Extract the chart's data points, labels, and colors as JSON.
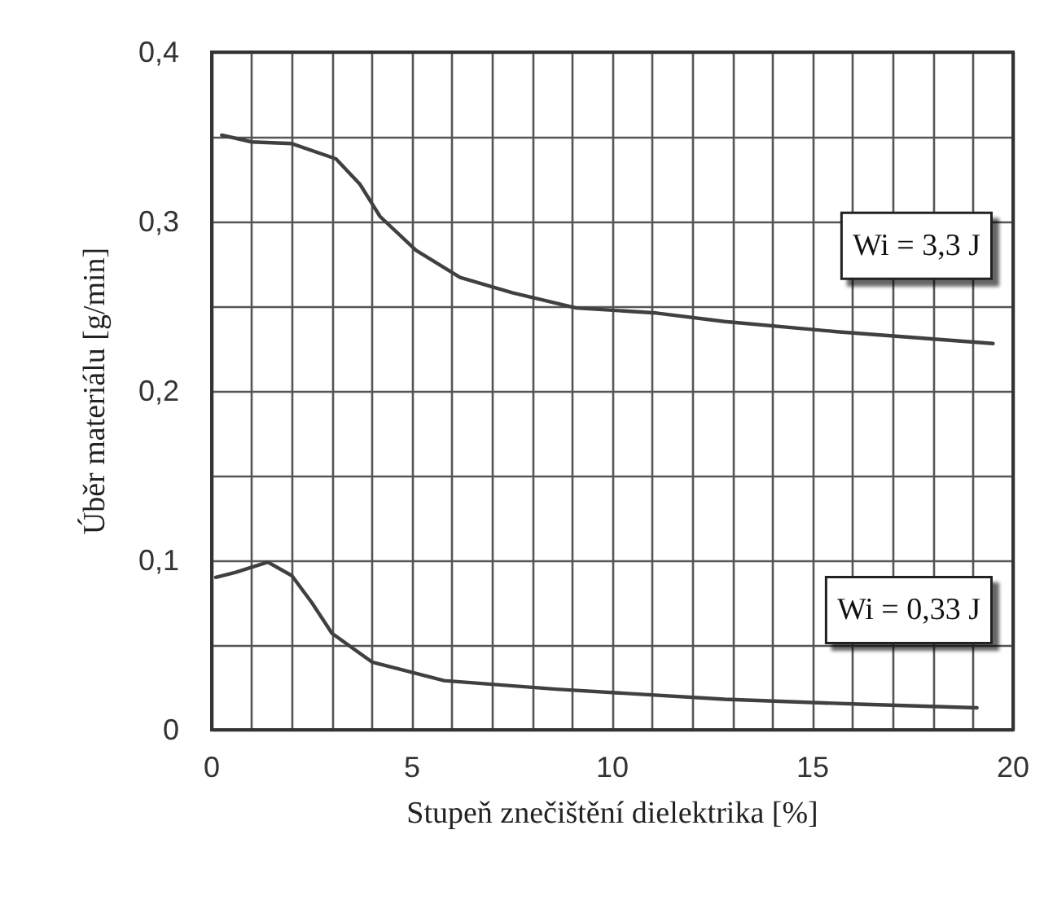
{
  "chart_data": {
    "type": "line",
    "xlabel": "Stupeň znečištění dielektrika [%]",
    "ylabel": "Úběr materiálu [g/min]",
    "series": [
      {
        "color": "#404040",
        "x": [
          0.25,
          1.0,
          2.0,
          3.1,
          3.7,
          4.2,
          5.1,
          6.2,
          7.5,
          9.1,
          11.1,
          12.8,
          15.6,
          19.5
        ],
        "values": [
          0.351,
          0.347,
          0.346,
          0.337,
          0.322,
          0.303,
          0.283,
          0.267,
          0.258,
          0.249,
          0.246,
          0.241,
          0.235,
          0.228
        ]
      },
      {
        "color": "#404040",
        "x": [
          0.1,
          0.6,
          1.4,
          2.0,
          2.5,
          3.0,
          4.0,
          5.8,
          8.6,
          12.8,
          16.3,
          19.1
        ],
        "values": [
          0.09,
          0.093,
          0.099,
          0.091,
          0.075,
          0.057,
          0.04,
          0.029,
          0.024,
          0.018,
          0.015,
          0.013
        ]
      }
    ],
    "xlim": [
      0,
      20
    ],
    "xticks": [
      0,
      5,
      10,
      15,
      20
    ],
    "ylim": [
      0,
      0.4
    ],
    "yticks": [
      0,
      {
        "value": 0.1,
        "label": "0,1"
      },
      {
        "value": 0.2,
        "label": "0,2"
      },
      {
        "value": 0.3,
        "label": "0,3"
      },
      {
        "value": 0.4,
        "label": "0,4"
      }
    ],
    "grid": true,
    "marker": "none",
    "line_style": "solid",
    "annotations": [
      "Wi = 3,3 J",
      "Wi = 0,33 J"
    ]
  }
}
